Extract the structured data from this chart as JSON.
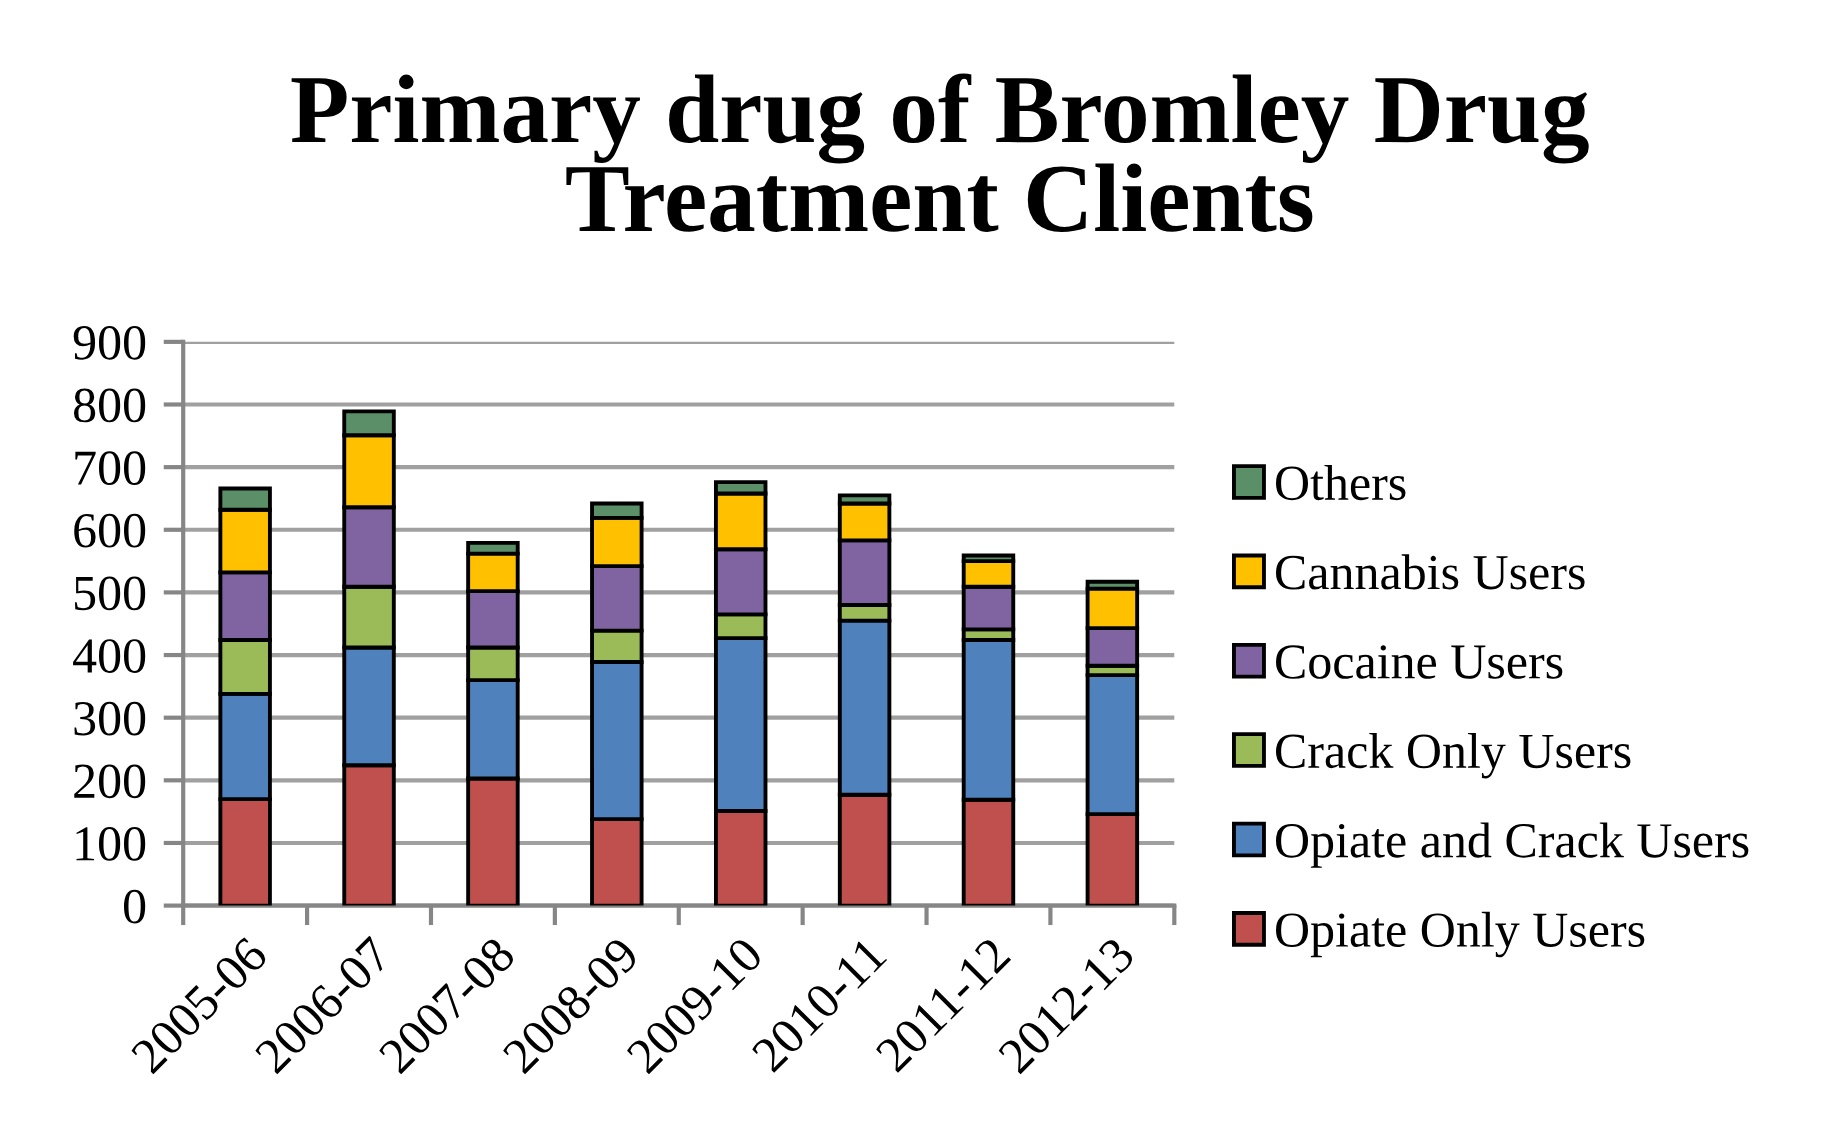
{
  "chart_data": {
    "type": "bar",
    "stacked": true,
    "title": "Primary drug of Bromley Drug Treatment Clients",
    "categories": [
      "2005-06",
      "2006-07",
      "2007-08",
      "2008-09",
      "2009-10",
      "2010-11",
      "2011-12",
      "2012-13"
    ],
    "series": [
      {
        "name": "Opiate Only Users",
        "color": "#c0504d",
        "values": [
          170,
          224,
          203,
          138,
          151,
          177,
          169,
          146
        ]
      },
      {
        "name": "Opiate and Crack Users",
        "color": "#4f81bd",
        "values": [
          168,
          188,
          157,
          251,
          276,
          278,
          255,
          222
        ]
      },
      {
        "name": "Crack Only Users",
        "color": "#9bbb59",
        "values": [
          86,
          97,
          52,
          50,
          38,
          25,
          17,
          15
        ]
      },
      {
        "name": "Cocaine Users",
        "color": "#8064a2",
        "values": [
          108,
          127,
          90,
          103,
          104,
          103,
          68,
          60
        ]
      },
      {
        "name": "Cannabis Users",
        "color": "#ffc000",
        "values": [
          100,
          115,
          60,
          77,
          89,
          59,
          41,
          63
        ]
      },
      {
        "name": "Others",
        "color": "#5a8f68",
        "values": [
          34,
          38,
          17,
          23,
          18,
          13,
          9,
          11
        ]
      }
    ],
    "ylim": [
      0,
      900
    ],
    "yticks": [
      0,
      100,
      200,
      300,
      400,
      500,
      600,
      700,
      800,
      900
    ],
    "grid": "y",
    "legend": "right"
  }
}
